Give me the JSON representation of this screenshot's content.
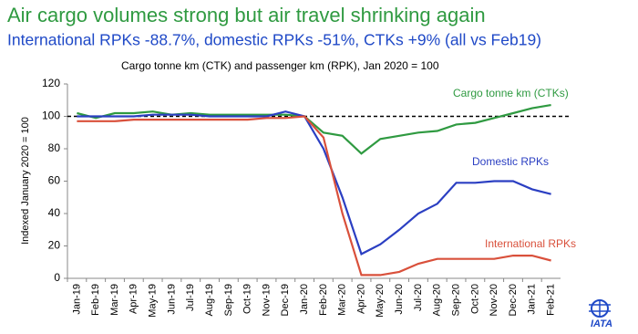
{
  "chart_data": {
    "type": "line",
    "title": "Air cargo volumes strong but air travel shrinking again",
    "subtitle": "International RPKs -88.7%, domestic RPKs -51%, CTKs +9% (all vs Feb19)",
    "chart_title": "Cargo tonne km (CTK) and passenger km (RPK), Jan 2020 = 100",
    "y_label": "Indexed January 2020 = 100",
    "categories": [
      "Jan-19",
      "Feb-19",
      "Mar-19",
      "Apr-19",
      "May-19",
      "Jun-19",
      "Jul-19",
      "Aug-19",
      "Sep-19",
      "Oct-19",
      "Nov-19",
      "Dec-19",
      "Jan-20",
      "Feb-20",
      "Mar-20",
      "Apr-20",
      "May-20",
      "Jun-20",
      "Jul-20",
      "Aug-20",
      "Sep-20",
      "Oct-20",
      "Nov-20",
      "Dec-20",
      "Jan-21",
      "Feb-21"
    ],
    "series": [
      {
        "name": "Cargo tonne km (CTKs)",
        "color": "#2f9a41",
        "values": [
          102,
          99,
          102,
          102,
          103,
          101,
          102,
          101,
          101,
          101,
          101,
          101,
          100,
          90,
          88,
          77,
          86,
          88,
          90,
          91,
          95,
          96,
          99,
          102,
          105,
          107
        ]
      },
      {
        "name": "Domestic RPKs",
        "color": "#2b3fc2",
        "values": [
          100,
          100,
          100,
          100,
          101,
          101,
          101,
          100,
          100,
          100,
          100,
          103,
          100,
          80,
          50,
          15,
          21,
          30,
          40,
          46,
          59,
          59,
          60,
          60,
          55,
          52
        ]
      },
      {
        "name": "International RPKs",
        "color": "#d9503b",
        "values": [
          97,
          97,
          97,
          98,
          98,
          98,
          98,
          98,
          98,
          98,
          99,
          99,
          100,
          87,
          40,
          2,
          2,
          4,
          9,
          12,
          12,
          12,
          12,
          14,
          14,
          11
        ]
      }
    ],
    "reference_line": 100,
    "ylim": [
      0,
      120
    ],
    "yticks": [
      0,
      20,
      40,
      60,
      80,
      100,
      120
    ]
  },
  "logo": "IATA"
}
